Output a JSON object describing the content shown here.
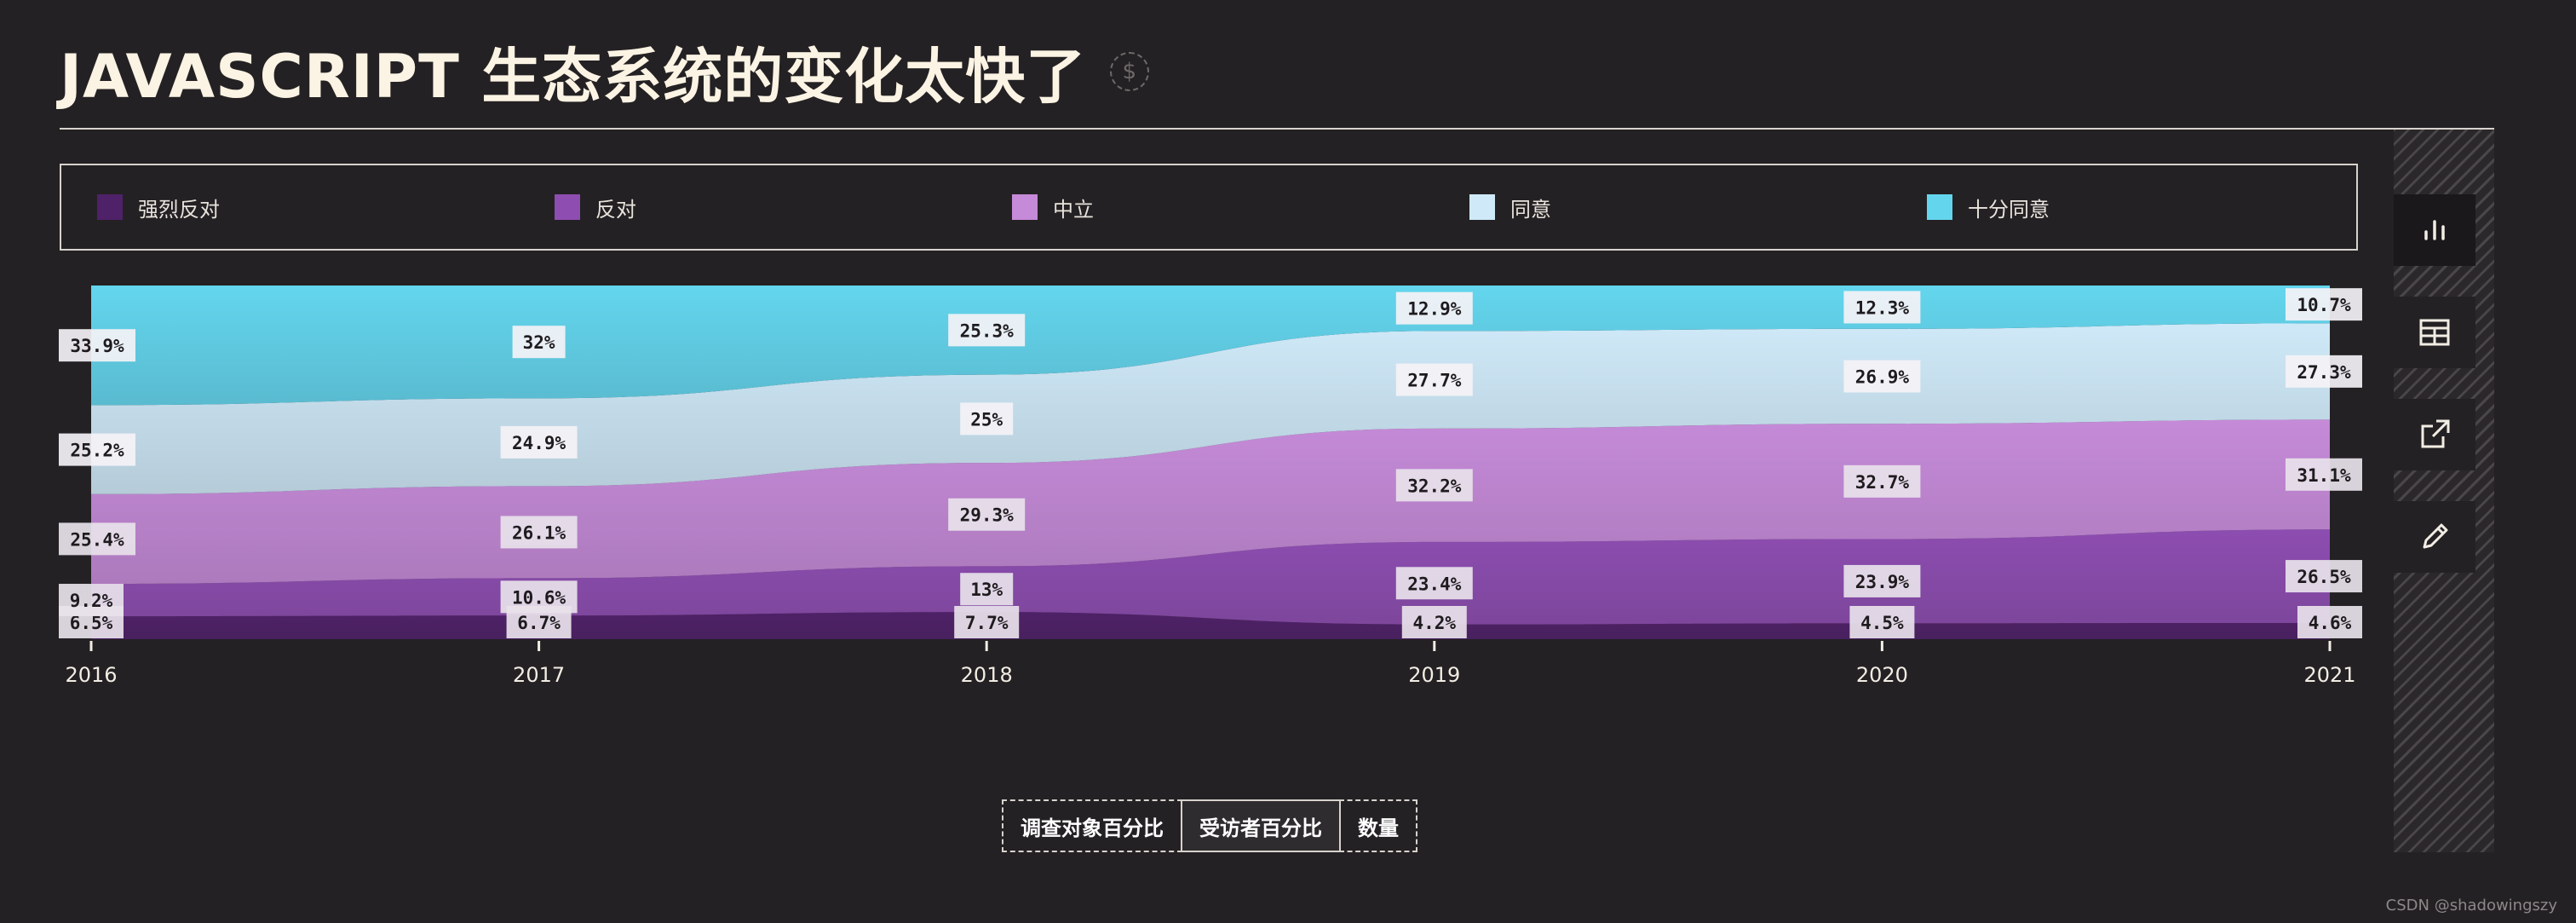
{
  "page": {
    "title": "JAVASCRIPT 生态系统的变化太快了",
    "currency_symbol": "$",
    "watermark": "CSDN @shadowingszy"
  },
  "legend": [
    {
      "label": "强烈反对",
      "color": "#4f2168"
    },
    {
      "label": "反对",
      "color": "#8d4db1"
    },
    {
      "label": "中立",
      "color": "#c58ad8"
    },
    {
      "label": "同意",
      "color": "#cfe9f8"
    },
    {
      "label": "十分同意",
      "color": "#63d6ee"
    }
  ],
  "toggle": {
    "buttons": [
      "调查对象百分比",
      "受访者百分比",
      "数量"
    ],
    "active_index": 1
  },
  "side_toolbar": [
    {
      "icon": "bar-chart-icon",
      "active": true
    },
    {
      "icon": "table-icon",
      "active": false
    },
    {
      "icon": "export-icon",
      "active": false
    },
    {
      "icon": "edit-icon",
      "active": false
    }
  ],
  "chart_data": {
    "type": "area",
    "stacked": true,
    "x": [
      "2016",
      "2017",
      "2018",
      "2019",
      "2020",
      "2021"
    ],
    "series": [
      {
        "name": "强烈反对",
        "color": "#4f2168",
        "values": [
          6.5,
          6.7,
          7.7,
          4.2,
          4.5,
          4.6
        ],
        "labels": [
          "6.5%",
          "6.7%",
          "7.7%",
          "4.2%",
          "4.5%",
          "4.6%"
        ]
      },
      {
        "name": "反对",
        "color": "#8d4db1",
        "values": [
          9.2,
          10.6,
          13,
          23.4,
          23.9,
          26.5
        ],
        "labels": [
          "9.2%",
          "10.6%",
          "13%",
          "23.4%",
          "23.9%",
          "26.5%"
        ]
      },
      {
        "name": "中立",
        "color": "#c58ad8",
        "values": [
          25.4,
          26.1,
          29.3,
          32.2,
          32.7,
          31.1
        ],
        "labels": [
          "25.4%",
          "26.1%",
          "29.3%",
          "32.2%",
          "32.7%",
          "31.1%"
        ]
      },
      {
        "name": "同意",
        "color": "#cfe9f8",
        "values": [
          25.2,
          24.9,
          25,
          27.7,
          26.9,
          27.3
        ],
        "labels": [
          "25.2%",
          "24.9%",
          "25%",
          "27.7%",
          "26.9%",
          "27.3%"
        ]
      },
      {
        "name": "十分同意",
        "color": "#63d6ee",
        "values": [
          33.9,
          32,
          25.3,
          12.9,
          12.3,
          10.7
        ],
        "labels": [
          "33.9%",
          "32%",
          "25.3%",
          "12.9%",
          "12.3%",
          "10.7%"
        ]
      }
    ],
    "ylim": [
      0,
      100
    ],
    "grid": false,
    "legend_position": "top"
  }
}
